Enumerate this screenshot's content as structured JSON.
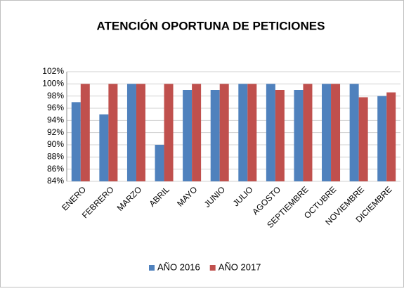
{
  "chart_data": {
    "type": "bar",
    "title": "ATENCIÓN OPORTUNA DE PETICIONES",
    "categories": [
      "ENERO",
      "FEBRERO",
      "MARZO",
      "ABRIL",
      "MAYO",
      "JUNIO",
      "JULIO",
      "AGOSTO",
      "SEPTIEMBRE",
      "OCTUBRE",
      "NOVIEMBRE",
      "DICIEMBRE"
    ],
    "series": [
      {
        "name": "AÑO 2016",
        "color": "#4f81bd",
        "values": [
          97,
          95,
          100,
          90,
          99,
          99,
          100,
          100,
          99,
          100,
          100,
          98
        ]
      },
      {
        "name": "AÑO 2017",
        "color": "#c0504d",
        "values": [
          100,
          100,
          100,
          100,
          100,
          100,
          100,
          99,
          100,
          100,
          97.8,
          98.6
        ]
      }
    ],
    "ylim": [
      84,
      102
    ],
    "yticks": [
      {
        "value": 84,
        "label": "84%"
      },
      {
        "value": 86,
        "label": "86%"
      },
      {
        "value": 88,
        "label": "88%"
      },
      {
        "value": 90,
        "label": "90%"
      },
      {
        "value": 92,
        "label": "92%"
      },
      {
        "value": 94,
        "label": "94%"
      },
      {
        "value": 96,
        "label": "96%"
      },
      {
        "value": 98,
        "label": "98%"
      },
      {
        "value": 100,
        "label": "100%"
      },
      {
        "value": 102,
        "label": "102%"
      }
    ],
    "grid": true,
    "legend": "bottom"
  }
}
